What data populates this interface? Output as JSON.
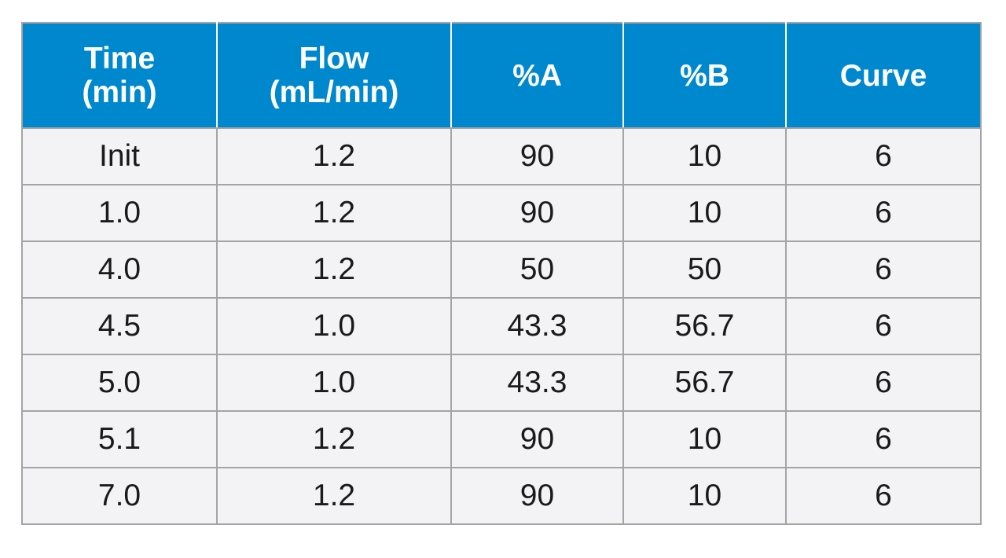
{
  "table": {
    "headers": [
      {
        "line1": "Time",
        "line2": "(min)"
      },
      {
        "line1": "Flow",
        "line2": "(mL/min)"
      },
      {
        "line1": "%A",
        "line2": ""
      },
      {
        "line1": "%B",
        "line2": ""
      },
      {
        "line1": "Curve",
        "line2": ""
      }
    ],
    "rows": [
      [
        "Init",
        "1.2",
        "90",
        "10",
        "6"
      ],
      [
        "1.0",
        "1.2",
        "90",
        "10",
        "6"
      ],
      [
        "4.0",
        "1.2",
        "50",
        "50",
        "6"
      ],
      [
        "4.5",
        "1.0",
        "43.3",
        "56.7",
        "6"
      ],
      [
        "5.0",
        "1.0",
        "43.3",
        "56.7",
        "6"
      ],
      [
        "5.1",
        "1.2",
        "90",
        "10",
        "6"
      ],
      [
        "7.0",
        "1.2",
        "90",
        "10",
        "6"
      ]
    ]
  },
  "colors": {
    "header_bg": "#0088cf",
    "header_text": "#ffffff",
    "row_bg": "#f3f3f5",
    "border": "#a4a4a4"
  }
}
